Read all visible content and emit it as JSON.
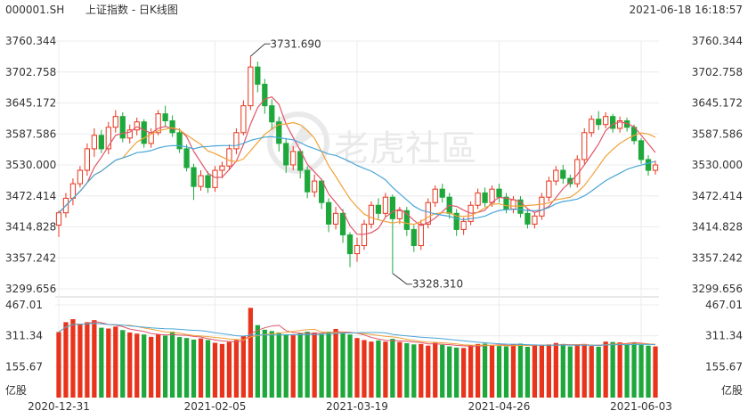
{
  "header": {
    "symbol": "000001.SH",
    "title": "上证指数 - 日K线图",
    "timestamp": "2021-06-18 16:18:57"
  },
  "watermark": {
    "text": "老虎社區"
  },
  "colors": {
    "up": "#e8341c",
    "down": "#1ea83c",
    "ma5": "#e0556a",
    "ma10": "#f0a33a",
    "ma20": "#4aa6d8"
  },
  "chart_data": [
    {
      "type": "candlestick",
      "title": "",
      "price_ticks": [
        "3760.344",
        "3702.758",
        "3645.172",
        "3587.586",
        "3530.000",
        "3472.414",
        "3414.828",
        "3357.242",
        "3299.656"
      ],
      "ylim": [
        3299.656,
        3760.344
      ],
      "x_tick_labels": [
        "2020-12-31",
        "2021-02-05",
        "2021-03-19",
        "2021-04-26",
        "2021-06-03"
      ],
      "x_tick_indices": [
        0,
        22,
        42,
        62,
        82
      ],
      "annotations": [
        {
          "label": "3731.690",
          "index": 27,
          "value": 3731.69
        },
        {
          "label": "3328.310",
          "index": 47,
          "value": 3328.31
        }
      ],
      "candles": [
        [
          3418,
          3441,
          3396,
          3445,
          0
        ],
        [
          3441,
          3468,
          3432,
          3478,
          1
        ],
        [
          3468,
          3495,
          3455,
          3505,
          2
        ],
        [
          3495,
          3520,
          3488,
          3528,
          3
        ],
        [
          3520,
          3560,
          3510,
          3570,
          4
        ],
        [
          3560,
          3585,
          3545,
          3598,
          5
        ],
        [
          3585,
          3560,
          3552,
          3595,
          6
        ],
        [
          3560,
          3600,
          3550,
          3610,
          7
        ],
        [
          3600,
          3620,
          3590,
          3632,
          8
        ],
        [
          3620,
          3580,
          3572,
          3628,
          9
        ],
        [
          3580,
          3595,
          3570,
          3605,
          10
        ],
        [
          3595,
          3610,
          3585,
          3618,
          11
        ],
        [
          3610,
          3570,
          3562,
          3615,
          12
        ],
        [
          3570,
          3590,
          3562,
          3598,
          13
        ],
        [
          3590,
          3625,
          3585,
          3632,
          14
        ],
        [
          3625,
          3612,
          3602,
          3640,
          15
        ],
        [
          3612,
          3590,
          3582,
          3622,
          16
        ],
        [
          3590,
          3560,
          3552,
          3598,
          17
        ],
        [
          3560,
          3525,
          3518,
          3568,
          18
        ],
        [
          3525,
          3490,
          3465,
          3532,
          19
        ],
        [
          3490,
          3510,
          3482,
          3520,
          20
        ],
        [
          3510,
          3488,
          3478,
          3518,
          21
        ],
        [
          3488,
          3520,
          3480,
          3528,
          22
        ],
        [
          3520,
          3528,
          3505,
          3536,
          23
        ],
        [
          3528,
          3560,
          3520,
          3568,
          24
        ],
        [
          3560,
          3590,
          3550,
          3598,
          25
        ],
        [
          3590,
          3640,
          3585,
          3650,
          26
        ],
        [
          3640,
          3712,
          3632,
          3731.69,
          27
        ],
        [
          3712,
          3680,
          3665,
          3722,
          28
        ],
        [
          3680,
          3640,
          3625,
          3690,
          29
        ],
        [
          3640,
          3610,
          3595,
          3652,
          30
        ],
        [
          3610,
          3570,
          3555,
          3620,
          31
        ],
        [
          3570,
          3530,
          3515,
          3580,
          32
        ],
        [
          3530,
          3555,
          3520,
          3565,
          33
        ],
        [
          3555,
          3520,
          3505,
          3560,
          34
        ],
        [
          3520,
          3480,
          3468,
          3528,
          35
        ],
        [
          3480,
          3500,
          3470,
          3512,
          36
        ],
        [
          3500,
          3460,
          3448,
          3505,
          37
        ],
        [
          3460,
          3420,
          3405,
          3468,
          38
        ],
        [
          3420,
          3440,
          3410,
          3452,
          39
        ],
        [
          3440,
          3400,
          3385,
          3448,
          40
        ],
        [
          3400,
          3365,
          3340,
          3405,
          41
        ],
        [
          3365,
          3380,
          3350,
          3395,
          42
        ],
        [
          3380,
          3420,
          3372,
          3428,
          43
        ],
        [
          3420,
          3455,
          3412,
          3462,
          44
        ],
        [
          3455,
          3440,
          3428,
          3468,
          45
        ],
        [
          3440,
          3470,
          3432,
          3478,
          46
        ],
        [
          3470,
          3430,
          3328.31,
          3475,
          47
        ],
        [
          3430,
          3445,
          3420,
          3452,
          48
        ],
        [
          3445,
          3410,
          3398,
          3452,
          49
        ],
        [
          3410,
          3380,
          3368,
          3418,
          50
        ],
        [
          3380,
          3420,
          3372,
          3428,
          51
        ],
        [
          3420,
          3460,
          3412,
          3468,
          52
        ],
        [
          3460,
          3485,
          3452,
          3492,
          53
        ],
        [
          3485,
          3470,
          3460,
          3495,
          54
        ],
        [
          3470,
          3440,
          3430,
          3478,
          55
        ],
        [
          3440,
          3410,
          3398,
          3448,
          56
        ],
        [
          3410,
          3425,
          3400,
          3432,
          57
        ],
        [
          3425,
          3455,
          3418,
          3462,
          58
        ],
        [
          3455,
          3478,
          3448,
          3486,
          59
        ],
        [
          3478,
          3460,
          3452,
          3488,
          60
        ],
        [
          3460,
          3485,
          3452,
          3492,
          61
        ],
        [
          3485,
          3470,
          3460,
          3495,
          62
        ],
        [
          3470,
          3448,
          3440,
          3478,
          63
        ],
        [
          3448,
          3465,
          3440,
          3472,
          64
        ],
        [
          3465,
          3440,
          3432,
          3472,
          65
        ],
        [
          3440,
          3420,
          3412,
          3448,
          66
        ],
        [
          3420,
          3435,
          3412,
          3442,
          67
        ],
        [
          3435,
          3470,
          3428,
          3478,
          68
        ],
        [
          3470,
          3500,
          3462,
          3508,
          69
        ],
        [
          3500,
          3520,
          3492,
          3528,
          70
        ],
        [
          3520,
          3505,
          3495,
          3530,
          71
        ],
        [
          3505,
          3495,
          3488,
          3512,
          72
        ],
        [
          3495,
          3540,
          3488,
          3548,
          73
        ],
        [
          3540,
          3590,
          3532,
          3598,
          74
        ],
        [
          3590,
          3615,
          3582,
          3622,
          75
        ],
        [
          3615,
          3605,
          3595,
          3630,
          76
        ],
        [
          3605,
          3620,
          3598,
          3628,
          77
        ],
        [
          3620,
          3598,
          3590,
          3625,
          78
        ],
        [
          3598,
          3612,
          3590,
          3620,
          79
        ],
        [
          3612,
          3600,
          3592,
          3618,
          80
        ],
        [
          3600,
          3575,
          3568,
          3605,
          81
        ],
        [
          3575,
          3540,
          3532,
          3580,
          82
        ],
        [
          3540,
          3520,
          3510,
          3548,
          83
        ],
        [
          3520,
          3530,
          3512,
          3538,
          84
        ]
      ],
      "candle_format": [
        "open",
        "close",
        "low",
        "high",
        "index"
      ]
    },
    {
      "type": "bar",
      "title": "",
      "unit_label": "亿股",
      "volume_ticks": [
        "467.01",
        "311.34",
        "155.67"
      ],
      "ylim": [
        0,
        467.01
      ],
      "values": [
        330,
        380,
        395,
        372,
        380,
        390,
        352,
        348,
        358,
        340,
        328,
        322,
        318,
        306,
        320,
        312,
        332,
        305,
        300,
        292,
        298,
        290,
        276,
        270,
        280,
        290,
        310,
        452,
        365,
        342,
        335,
        328,
        318,
        314,
        325,
        332,
        328,
        322,
        332,
        346,
        325,
        318,
        300,
        290,
        282,
        288,
        282,
        296,
        280,
        274,
        268,
        270,
        262,
        278,
        266,
        258,
        252,
        250,
        265,
        270,
        272,
        262,
        260,
        258,
        268,
        272,
        256,
        263,
        262,
        268,
        275,
        270,
        258,
        265,
        270,
        260,
        256,
        282,
        280,
        278,
        270,
        276,
        266,
        262,
        258
      ]
    }
  ]
}
